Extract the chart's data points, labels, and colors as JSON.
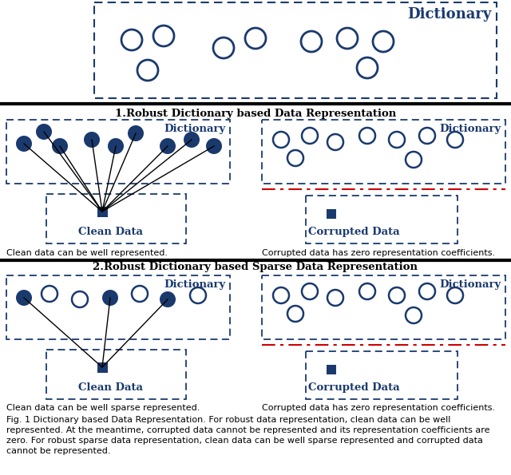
{
  "dark_blue": "#1a3a6e",
  "red_dash": "#cc0000",
  "fig_width": 6.4,
  "fig_height": 5.95,
  "background": "#ffffff",
  "section1_title": "1.Robust Dictionary based Data Representation",
  "section2_title": "2.Robust Dictionary based Sparse Data Representation",
  "caption_line1": "Fig. 1 Dictionary based Data Representation. For robust data representation, clean data can be well",
  "caption_line2": "represented. At the meantime, corrupted data cannot be represented and its representation coefficients are",
  "caption_line3": "zero. For robust sparse data representation, clean data can be well sparse represented and corrupted data",
  "caption_line4": "cannot be represented.",
  "sub_caption_left1": "Clean data can be well represented.",
  "sub_caption_right1": "Corrupted data has zero representation coefficients.",
  "sub_caption_left2": "Clean data can be well sparse represented.",
  "sub_caption_right2": "Corrupted data has zero representation coefficients.",
  "label_dictionary": "Dictionary",
  "label_clean": "Clean Data",
  "label_corrupted": "Corrupted Data"
}
